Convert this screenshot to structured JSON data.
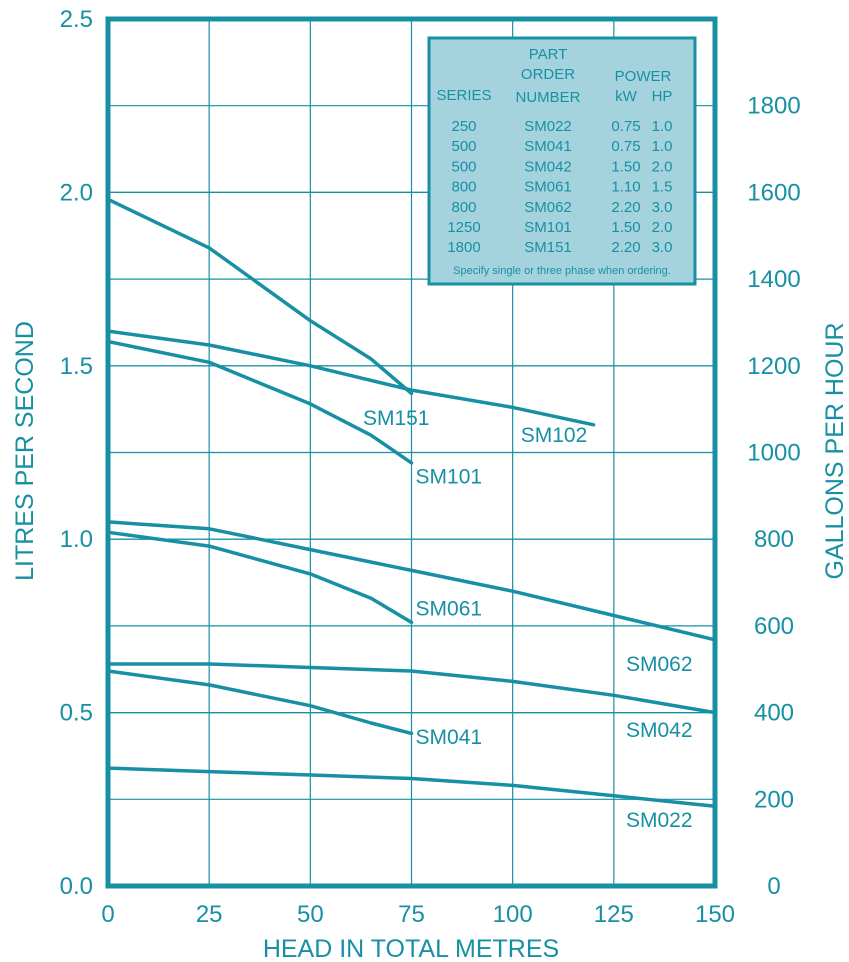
{
  "chart_data": {
    "type": "line",
    "xlabel": "HEAD IN TOTAL METRES",
    "ylabel": "LITRES PER SECOND",
    "y2label": "GALLONS PER HOUR",
    "xlim": [
      0,
      150
    ],
    "ylim": [
      0,
      2.5
    ],
    "y2lim": [
      0,
      2000
    ],
    "x_ticks": [
      "0",
      "25",
      "50",
      "75",
      "100",
      "125",
      "150"
    ],
    "y_ticks": [
      "0.0",
      "0.5",
      "1.0",
      "1.5",
      "2.0",
      "2.5"
    ],
    "y2_ticks": [
      "0",
      "200",
      "400",
      "600",
      "800",
      "1000",
      "1200",
      "1400",
      "1600",
      "1800"
    ],
    "grid": true,
    "colors": {
      "line": "#1790a4",
      "table_bg": "#a5d3dd",
      "background": "#ffffff"
    },
    "series": [
      {
        "name": "SM151",
        "x": [
          0,
          25,
          50,
          65,
          75
        ],
        "y": [
          1.98,
          1.84,
          1.63,
          1.52,
          1.42
        ]
      },
      {
        "name": "SM102",
        "x": [
          0,
          25,
          50,
          75,
          100,
          120
        ],
        "y": [
          1.6,
          1.56,
          1.5,
          1.43,
          1.38,
          1.33
        ]
      },
      {
        "name": "SM101",
        "x": [
          0,
          25,
          50,
          65,
          75
        ],
        "y": [
          1.57,
          1.51,
          1.39,
          1.3,
          1.22
        ]
      },
      {
        "name": "SM062",
        "x": [
          0,
          25,
          50,
          75,
          100,
          125,
          150
        ],
        "y": [
          1.05,
          1.03,
          0.97,
          0.91,
          0.85,
          0.78,
          0.71
        ]
      },
      {
        "name": "SM061",
        "x": [
          0,
          25,
          50,
          65,
          75
        ],
        "y": [
          1.02,
          0.98,
          0.9,
          0.83,
          0.76
        ]
      },
      {
        "name": "SM042",
        "x": [
          0,
          25,
          50,
          75,
          100,
          125,
          150
        ],
        "y": [
          0.64,
          0.64,
          0.63,
          0.62,
          0.59,
          0.55,
          0.5
        ]
      },
      {
        "name": "SM041",
        "x": [
          0,
          25,
          50,
          65,
          75
        ],
        "y": [
          0.62,
          0.58,
          0.52,
          0.47,
          0.44
        ]
      },
      {
        "name": "SM022",
        "x": [
          0,
          25,
          50,
          75,
          100,
          125,
          150
        ],
        "y": [
          0.34,
          0.33,
          0.32,
          0.31,
          0.29,
          0.26,
          0.23
        ]
      }
    ],
    "labels": [
      {
        "text": "SM151",
        "x": 63,
        "y": 1.33
      },
      {
        "text": "SM102",
        "x": 102,
        "y": 1.28
      },
      {
        "text": "SM101",
        "x": 76,
        "y": 1.16
      },
      {
        "text": "SM061",
        "x": 76,
        "y": 0.78
      },
      {
        "text": "SM062",
        "x": 128,
        "y": 0.62
      },
      {
        "text": "SM042",
        "x": 128,
        "y": 0.43
      },
      {
        "text": "SM041",
        "x": 76,
        "y": 0.41
      },
      {
        "text": "SM022",
        "x": 128,
        "y": 0.17
      }
    ],
    "table": {
      "headers": [
        "SERIES",
        "PART\nORDER\nNUMBER",
        "POWER\nkW   HP"
      ],
      "header_lines": {
        "series": "SERIES",
        "part": [
          "PART",
          "ORDER",
          "NUMBER"
        ],
        "power": "POWER",
        "kw": "kW",
        "hp": "HP"
      },
      "rows": [
        [
          "250",
          "SM022",
          "0.75",
          "1.0"
        ],
        [
          "500",
          "SM041",
          "0.75",
          "1.0"
        ],
        [
          "500",
          "SM042",
          "1.50",
          "2.0"
        ],
        [
          "800",
          "SM061",
          "1.10",
          "1.5"
        ],
        [
          "800",
          "SM062",
          "2.20",
          "3.0"
        ],
        [
          "1250",
          "SM101",
          "1.50",
          "2.0"
        ],
        [
          "1800",
          "SM151",
          "2.20",
          "3.0"
        ]
      ],
      "note": "Specify single or three phase when ordering."
    }
  }
}
